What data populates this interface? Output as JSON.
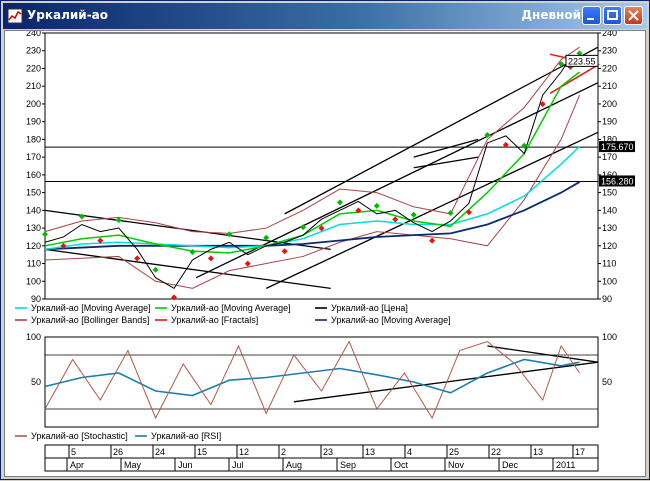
{
  "window": {
    "title": "Уркалий-ао",
    "period": "Дневной"
  },
  "colors": {
    "price": "#000000",
    "ma_fast": "#00cc00",
    "ma_mid": "#00dddd",
    "ma_slow": "#0b2a6e",
    "bollinger": "#aa4444",
    "fractals": "#ee1111",
    "fractal_up": "#00bb00",
    "stochastic": "#b05a4a",
    "rsi": "#1a7fb0",
    "trend": "#000000",
    "triangle": "#dd2222"
  },
  "chart_data": [
    {
      "type": "line",
      "panel": "price",
      "ylim": [
        90,
        240
      ],
      "yticks": [
        90,
        100,
        110,
        120,
        130,
        140,
        150,
        160,
        170,
        180,
        190,
        200,
        210,
        220,
        230,
        240
      ],
      "last_price_label": "223.55",
      "horizontal_levels": [
        {
          "value": 175.67,
          "label": "175.670"
        },
        {
          "value": 156.28,
          "label": "156.280"
        }
      ],
      "legend": [
        {
          "name": "Уркалий-ао [Moving Average]",
          "color": "#00dddd"
        },
        {
          "name": "Уркалий-ао [Moving Average]",
          "color": "#00cc00"
        },
        {
          "name": "Уркалий-ао [Цена]",
          "color": "#000000"
        },
        {
          "name": "Уркалий-ао [Bollinger Bands]",
          "color": "#aa4444"
        },
        {
          "name": "Уркалий-ао [Fractals]",
          "color": "#ee1111"
        },
        {
          "name": "Уркалий-ао [Moving Average]",
          "color": "#0b2a6e"
        }
      ],
      "series": [
        {
          "key": "price",
          "x": [
            0,
            10,
            20,
            30,
            40,
            50,
            60,
            70,
            80,
            90,
            100,
            110,
            120,
            130,
            140,
            150,
            160,
            170,
            180,
            190,
            200,
            210,
            220,
            230,
            240,
            250,
            260,
            270,
            280,
            285,
            290
          ],
          "values": [
            122,
            125,
            132,
            128,
            130,
            118,
            102,
            96,
            112,
            118,
            122,
            115,
            120,
            122,
            126,
            135,
            140,
            145,
            138,
            140,
            133,
            128,
            134,
            144,
            178,
            182,
            172,
            205,
            218,
            226,
            224
          ]
        },
        {
          "key": "ma_fast",
          "x": [
            0,
            20,
            40,
            60,
            80,
            100,
            120,
            140,
            160,
            180,
            200,
            220,
            240,
            260,
            280,
            290
          ],
          "values": [
            120,
            124,
            126,
            121,
            117,
            116,
            120,
            126,
            138,
            140,
            134,
            131,
            150,
            172,
            210,
            218
          ]
        },
        {
          "key": "ma_mid",
          "x": [
            0,
            20,
            40,
            60,
            80,
            100,
            120,
            140,
            160,
            180,
            200,
            220,
            240,
            260,
            280,
            290
          ],
          "values": [
            118,
            121,
            122,
            121,
            120,
            119,
            120,
            124,
            132,
            134,
            132,
            132,
            138,
            148,
            166,
            176
          ]
        },
        {
          "key": "ma_slow",
          "x": [
            0,
            20,
            40,
            60,
            80,
            100,
            120,
            140,
            160,
            180,
            200,
            220,
            240,
            260,
            280,
            290
          ],
          "values": [
            118,
            119,
            120,
            120,
            120,
            120,
            120,
            121,
            123,
            125,
            126,
            127,
            132,
            140,
            150,
            156
          ]
        },
        {
          "key": "bb_upper",
          "x": [
            0,
            20,
            40,
            60,
            80,
            100,
            120,
            140,
            160,
            180,
            200,
            220,
            240,
            260,
            280,
            290
          ],
          "values": [
            128,
            134,
            136,
            133,
            128,
            127,
            130,
            140,
            152,
            150,
            142,
            138,
            180,
            198,
            225,
            232
          ]
        },
        {
          "key": "bb_lower",
          "x": [
            0,
            20,
            40,
            60,
            80,
            100,
            120,
            140,
            160,
            180,
            200,
            220,
            240,
            260,
            280,
            290
          ],
          "values": [
            112,
            113,
            114,
            100,
            96,
            106,
            110,
            114,
            122,
            128,
            126,
            124,
            120,
            146,
            180,
            205
          ]
        }
      ]
    },
    {
      "type": "line",
      "panel": "oscillator",
      "ylim": [
        0,
        100
      ],
      "yticks": [
        50,
        100
      ],
      "horizontal_levels": [
        80,
        20
      ],
      "legend": [
        {
          "name": "Уркалий-ао [Stochastic]",
          "color": "#b05a4a"
        },
        {
          "name": "Уркалий-ао [RSI]",
          "color": "#1a7fb0"
        }
      ],
      "series": [
        {
          "key": "rsi",
          "x": [
            0,
            20,
            40,
            60,
            80,
            100,
            120,
            140,
            160,
            180,
            200,
            220,
            240,
            260,
            280,
            290
          ],
          "values": [
            45,
            55,
            60,
            40,
            35,
            52,
            55,
            60,
            65,
            58,
            50,
            38,
            60,
            75,
            68,
            72
          ]
        },
        {
          "key": "stochastic",
          "x": [
            0,
            15,
            30,
            45,
            60,
            75,
            90,
            105,
            120,
            135,
            150,
            165,
            180,
            195,
            210,
            225,
            240,
            255,
            270,
            280,
            290
          ],
          "values": [
            20,
            75,
            30,
            85,
            10,
            70,
            25,
            90,
            15,
            80,
            40,
            95,
            20,
            60,
            10,
            85,
            95,
            70,
            30,
            90,
            60
          ]
        }
      ]
    }
  ],
  "time_axis": {
    "day_labels": [
      "5",
      "26",
      "24",
      "15",
      "12",
      "2",
      "23",
      "13",
      "4",
      "25",
      "22",
      "13",
      "17"
    ],
    "month_labels": [
      "Apr",
      "May",
      "Jun",
      "Jul",
      "Aug",
      "Sep",
      "Oct",
      "Nov",
      "Dec",
      "2011"
    ]
  }
}
